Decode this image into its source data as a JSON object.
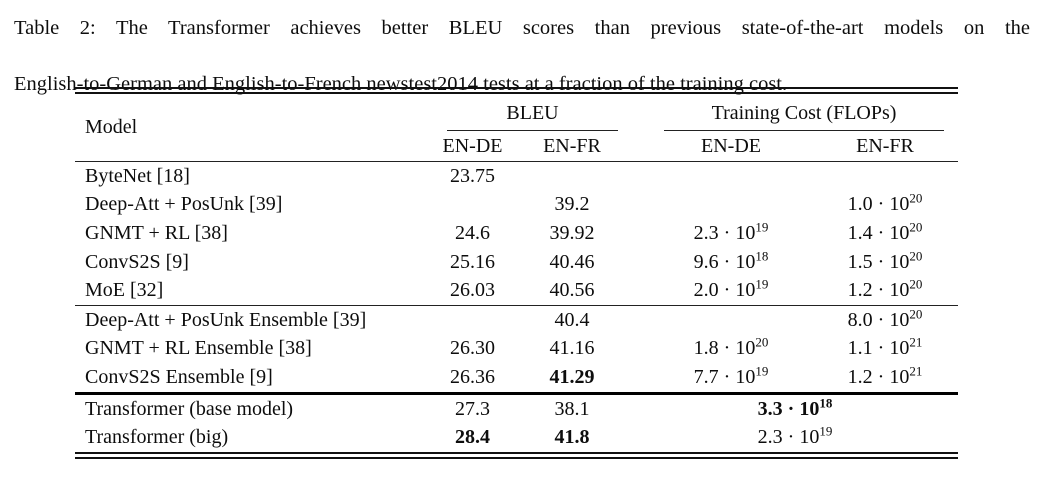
{
  "caption": {
    "line1": "Table 2: The Transformer achieves better BLEU scores than previous state-of-the-art models on the",
    "line2": "English-to-German and English-to-French newstest2014 tests at a fraction of the training cost."
  },
  "table": {
    "header": {
      "model": "Model",
      "bleu": "BLEU",
      "cost": "Training Cost (FLOPs)",
      "sub": [
        "EN-DE",
        "EN-FR",
        "EN-DE",
        "EN-FR"
      ]
    },
    "groups": [
      {
        "rows": [
          {
            "model": "ByteNet [18]",
            "bleu_en_de": {
              "t": "23.75"
            },
            "bleu_en_fr": null,
            "cost_en_de": null,
            "cost_en_fr": null,
            "cost_span": null
          },
          {
            "model": "Deep-Att + PosUnk [39]",
            "bleu_en_de": null,
            "bleu_en_fr": {
              "t": "39.2"
            },
            "cost_en_de": null,
            "cost_en_fr": {
              "m": "1.0 · 10",
              "e": "20"
            },
            "cost_span": null
          },
          {
            "model": "GNMT + RL [38]",
            "bleu_en_de": {
              "t": "24.6"
            },
            "bleu_en_fr": {
              "t": "39.92"
            },
            "cost_en_de": {
              "m": "2.3 · 10",
              "e": "19"
            },
            "cost_en_fr": {
              "m": "1.4 · 10",
              "e": "20"
            },
            "cost_span": null
          },
          {
            "model": "ConvS2S [9]",
            "bleu_en_de": {
              "t": "25.16"
            },
            "bleu_en_fr": {
              "t": "40.46"
            },
            "cost_en_de": {
              "m": "9.6 · 10",
              "e": "18"
            },
            "cost_en_fr": {
              "m": "1.5 · 10",
              "e": "20"
            },
            "cost_span": null
          },
          {
            "model": "MoE [32]",
            "bleu_en_de": {
              "t": "26.03"
            },
            "bleu_en_fr": {
              "t": "40.56"
            },
            "cost_en_de": {
              "m": "2.0 · 10",
              "e": "19"
            },
            "cost_en_fr": {
              "m": "1.2 · 10",
              "e": "20"
            },
            "cost_span": null
          }
        ]
      },
      {
        "rows": [
          {
            "model": "Deep-Att + PosUnk Ensemble [39]",
            "bleu_en_de": null,
            "bleu_en_fr": {
              "t": "40.4"
            },
            "cost_en_de": null,
            "cost_en_fr": {
              "m": "8.0 · 10",
              "e": "20"
            },
            "cost_span": null
          },
          {
            "model": "GNMT + RL Ensemble [38]",
            "bleu_en_de": {
              "t": "26.30"
            },
            "bleu_en_fr": {
              "t": "41.16"
            },
            "cost_en_de": {
              "m": "1.8 · 10",
              "e": "20"
            },
            "cost_en_fr": {
              "m": "1.1 · 10",
              "e": "21"
            },
            "cost_span": null
          },
          {
            "model": "ConvS2S Ensemble [9]",
            "bleu_en_de": {
              "t": "26.36"
            },
            "bleu_en_fr": {
              "t": "41.29",
              "b": true
            },
            "cost_en_de": {
              "m": "7.7 · 10",
              "e": "19"
            },
            "cost_en_fr": {
              "m": "1.2 · 10",
              "e": "21"
            },
            "cost_span": null
          }
        ]
      },
      {
        "rows": [
          {
            "model": "Transformer (base model)",
            "bleu_en_de": {
              "t": "27.3"
            },
            "bleu_en_fr": {
              "t": "38.1"
            },
            "cost_en_de": null,
            "cost_en_fr": null,
            "cost_span": {
              "m": "3.3 · 10",
              "e": "18",
              "b": true
            }
          },
          {
            "model": "Transformer (big)",
            "bleu_en_de": {
              "t": "28.4",
              "b": true
            },
            "bleu_en_fr": {
              "t": "41.8",
              "b": true
            },
            "cost_en_de": null,
            "cost_en_fr": null,
            "cost_span": {
              "m": "2.3 · 10",
              "e": "19"
            }
          }
        ]
      }
    ]
  }
}
